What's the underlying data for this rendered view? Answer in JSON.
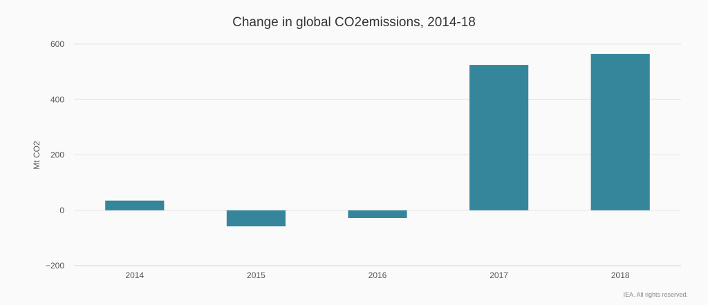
{
  "chart_data": {
    "type": "bar",
    "title": "Change in global CO2emissions, 2014-18",
    "xlabel": "",
    "ylabel": "Mt CO2",
    "categories": [
      "2014",
      "2015",
      "2016",
      "2017",
      "2018"
    ],
    "values": [
      35,
      -58,
      -28,
      525,
      565
    ],
    "ylim": [
      -200,
      600
    ],
    "yticks": [
      -200,
      0,
      200,
      400,
      600
    ],
    "ytick_labels": [
      "−200",
      "0",
      "200",
      "400",
      "600"
    ],
    "grid": true,
    "bar_color": "#35869a",
    "credit": "IEA. All rights reserved."
  }
}
